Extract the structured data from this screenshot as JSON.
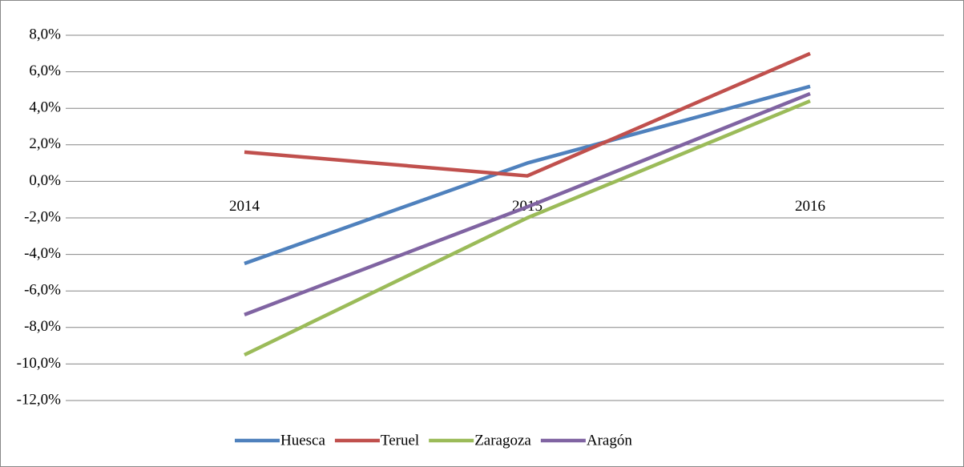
{
  "chart_data": {
    "type": "line",
    "categories": [
      "2014",
      "2015",
      "2016"
    ],
    "series": [
      {
        "name": "Huesca",
        "color": "#4f81bd",
        "values": [
          -4.5,
          1.0,
          5.2
        ]
      },
      {
        "name": "Teruel",
        "color": "#c0504d",
        "values": [
          1.6,
          0.3,
          7.0
        ]
      },
      {
        "name": "Zaragoza",
        "color": "#9bbb59",
        "values": [
          -9.5,
          -2.0,
          4.4
        ]
      },
      {
        "name": "Aragón",
        "color": "#8064a2",
        "values": [
          -7.3,
          -1.4,
          4.8
        ]
      }
    ],
    "ylim": [
      -12,
      8
    ],
    "yticks": [
      {
        "value": -12,
        "label": "-12,0%"
      },
      {
        "value": -10,
        "label": "-10,0%"
      },
      {
        "value": -8,
        "label": "-8,0%"
      },
      {
        "value": -6,
        "label": "-6,0%"
      },
      {
        "value": -4,
        "label": "-4,0%"
      },
      {
        "value": -2,
        "label": "-2,0%"
      },
      {
        "value": 0,
        "label": "0,0%"
      },
      {
        "value": 2,
        "label": "2,0%"
      },
      {
        "value": 4,
        "label": "4,0%"
      },
      {
        "value": 6,
        "label": "6,0%"
      },
      {
        "value": 8,
        "label": "8,0%"
      }
    ],
    "grid": true,
    "legend": "bottom"
  }
}
